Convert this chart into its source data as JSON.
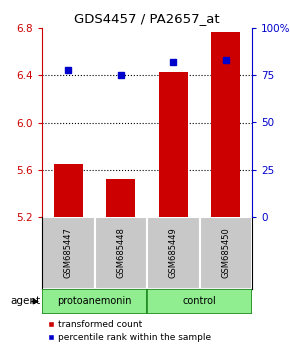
{
  "title": "GDS4457 / PA2657_at",
  "samples": [
    "GSM685447",
    "GSM685448",
    "GSM685449",
    "GSM685450"
  ],
  "bar_values": [
    5.65,
    5.52,
    6.43,
    6.77
  ],
  "percentile_values": [
    78,
    75,
    82,
    83
  ],
  "ylim_left": [
    5.2,
    6.8
  ],
  "ylim_right": [
    0,
    100
  ],
  "yticks_left": [
    5.2,
    5.6,
    6.0,
    6.4,
    6.8
  ],
  "yticks_right": [
    0,
    25,
    50,
    75,
    100
  ],
  "ytick_right_labels": [
    "0",
    "25",
    "50",
    "75",
    "100%"
  ],
  "bar_color": "#cc0000",
  "dot_color": "#0000cc",
  "group1_label": "protoanemonin",
  "group2_label": "control",
  "group_fill_color": "#90ee90",
  "group_edge_color": "#228b22",
  "agent_label": "agent",
  "legend_bar_label": "transformed count",
  "legend_dot_label": "percentile rank within the sample",
  "grid_yticks": [
    5.6,
    6.0,
    6.4
  ],
  "baseline": 5.2,
  "bar_width": 0.55,
  "sample_bg_color": "#c8c8c8",
  "plot_bg_color": "#ffffff"
}
